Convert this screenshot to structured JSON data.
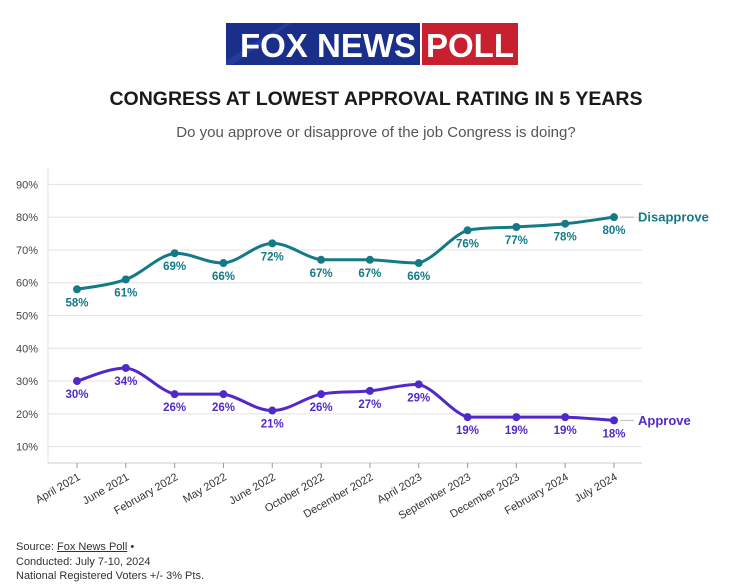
{
  "logo_text": "FOX NEWS POLL",
  "logo": {
    "part1": "FOX NEWS",
    "part2": "POLL"
  },
  "colors": {
    "disapprove": "#137a86",
    "approve": "#5229c9",
    "logo_blue": "#1a2f8a",
    "logo_red": "#c8202f",
    "grid": "#e1e1e1"
  },
  "chart_data": {
    "type": "line",
    "title": "CONGRESS AT LOWEST APPROVAL RATING IN 5 YEARS",
    "subtitle": "Do you approve or disapprove of the job Congress is doing?",
    "categories": [
      "April 2021",
      "June 2021",
      "February 2022",
      "May 2022",
      "June 2022",
      "October 2022",
      "December 2022",
      "April 2023",
      "September 2023",
      "December 2023",
      "February 2024",
      "July 2024"
    ],
    "series": [
      {
        "name": "Disapprove",
        "values": [
          58,
          61,
          69,
          66,
          72,
          67,
          67,
          66,
          76,
          77,
          78,
          80
        ]
      },
      {
        "name": "Approve",
        "values": [
          30,
          34,
          26,
          26,
          21,
          26,
          27,
          29,
          19,
          19,
          19,
          18
        ]
      }
    ],
    "ylim": [
      5,
      95
    ],
    "yticks": [
      "10%",
      "20%",
      "30%",
      "40%",
      "50%",
      "60%",
      "70%",
      "80%",
      "90%"
    ],
    "grid": true,
    "legend": "end-of-line labels"
  },
  "footer": {
    "source_prefix": "Source:",
    "source_link": "Fox News Poll",
    "source_suffix": "•",
    "conducted": "Conducted: July 7-10, 2024",
    "voters": "National Registered Voters +/- 3% Pts."
  }
}
